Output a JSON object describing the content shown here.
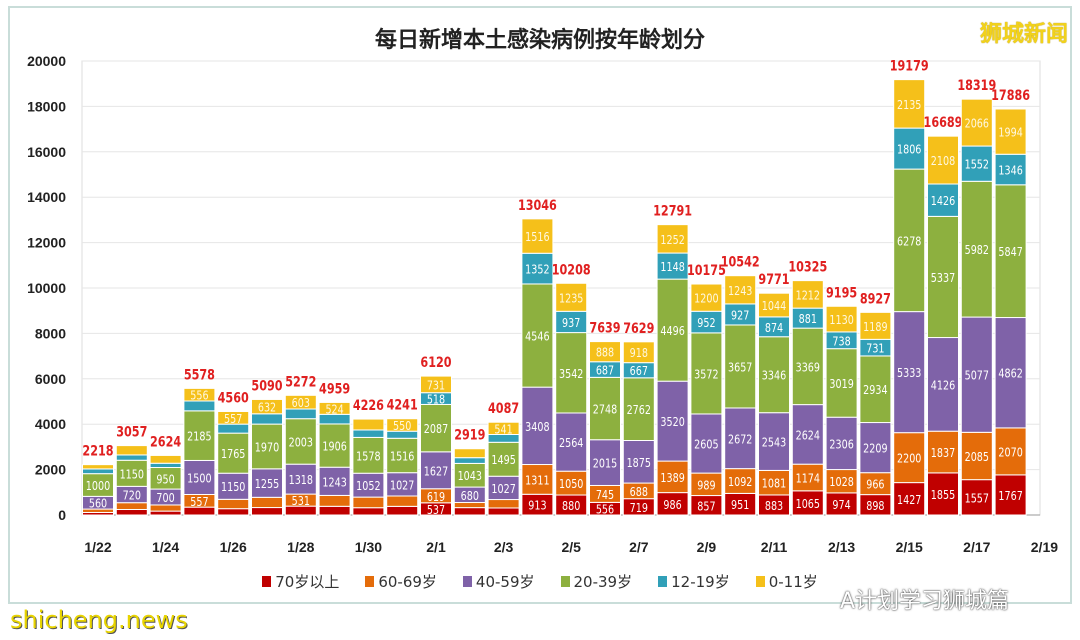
{
  "chart_data": {
    "type": "bar",
    "stacked": true,
    "title": "每日新增本土感染病例按年龄划分",
    "xlabel": "",
    "ylabel": "",
    "ylim": [
      0,
      20000
    ],
    "yticks": [
      0,
      2000,
      4000,
      6000,
      8000,
      10000,
      12000,
      14000,
      16000,
      18000,
      20000
    ],
    "xtick_labels": [
      "1/22",
      "1/24",
      "1/26",
      "1/28",
      "1/30",
      "2/1",
      "2/3",
      "2/5",
      "2/7",
      "2/9",
      "2/11",
      "2/13",
      "2/15",
      "2/17",
      "2/19"
    ],
    "grid": "horizontal",
    "legend_position": "bottom",
    "categories": [
      "1/22",
      "1/23",
      "1/24",
      "1/25",
      "1/26",
      "1/27",
      "1/28",
      "1/29",
      "1/30",
      "1/31",
      "2/1",
      "2/2",
      "2/3",
      "2/4",
      "2/5",
      "2/6",
      "2/7",
      "2/8",
      "2/9",
      "2/10",
      "2/11",
      "2/12",
      "2/13",
      "2/14",
      "2/15",
      "2/16",
      "2/17",
      "2/18"
    ],
    "totals": [
      2218,
      3057,
      2624,
      5578,
      4560,
      5090,
      5272,
      4959,
      4226,
      4241,
      6120,
      2919,
      4087,
      13046,
      10208,
      7639,
      7629,
      12791,
      10175,
      10542,
      9771,
      10325,
      9195,
      8927,
      19179,
      16689,
      18319,
      17886
    ],
    "series": [
      {
        "name": "70岁以上",
        "color": "#c00000",
        "values": [
          111,
          242,
          171,
          346,
          278,
          328,
          390,
          383,
          321,
          381,
          537,
          325,
          309,
          913,
          880,
          556,
          719,
          986,
          857,
          951,
          883,
          1065,
          974,
          898,
          1427,
          1855,
          1557,
          1767
        ]
      },
      {
        "name": "60-69岁",
        "color": "#e46c0a",
        "values": [
          150,
          300,
          271,
          557,
          413,
          451,
          531,
          479,
          467,
          456,
          619,
          225,
          372,
          1311,
          1050,
          745,
          688,
          1389,
          989,
          1092,
          1081,
          1174,
          1028,
          966,
          2200,
          1837,
          2085,
          2070
        ]
      },
      {
        "name": "40-59岁",
        "color": "#7f62a8",
        "values": [
          560,
          720,
          700,
          1500,
          1150,
          1255,
          1318,
          1243,
          1052,
          1027,
          1627,
          680,
          1027,
          3408,
          2564,
          2015,
          1875,
          3520,
          2605,
          2672,
          2543,
          2624,
          2306,
          2209,
          5333,
          4126,
          5077,
          4862
        ]
      },
      {
        "name": "20-39岁",
        "color": "#8db03f",
        "values": [
          1000,
          1150,
          950,
          2185,
          1765,
          1970,
          2003,
          1906,
          1578,
          1516,
          2087,
          1043,
          1495,
          4546,
          3542,
          2748,
          2762,
          4496,
          3572,
          3657,
          3346,
          3369,
          3019,
          2934,
          6278,
          5337,
          5982,
          5847
        ]
      },
      {
        "name": "12-19岁",
        "color": "#31a0b8",
        "values": [
          209,
          234,
          188,
          434,
          397,
          454,
          427,
          424,
          328,
          311,
          518,
          252,
          343,
          1352,
          937,
          687,
          667,
          1148,
          952,
          927,
          874,
          881,
          738,
          731,
          1806,
          1426,
          1552,
          1346
        ]
      },
      {
        "name": "0-11岁",
        "color": "#f5c01a",
        "values": [
          188,
          411,
          344,
          556,
          557,
          632,
          603,
          524,
          480,
          550,
          731,
          394,
          541,
          1516,
          1235,
          888,
          918,
          1252,
          1200,
          1243,
          1044,
          1212,
          1130,
          1189,
          2135,
          2108,
          2066,
          1994
        ]
      }
    ],
    "total_label_color": "#e02020"
  },
  "watermarks": {
    "top_right": "狮城新闻",
    "bottom_left": "shicheng.news",
    "bottom_right": "A计划学习狮城篇"
  }
}
